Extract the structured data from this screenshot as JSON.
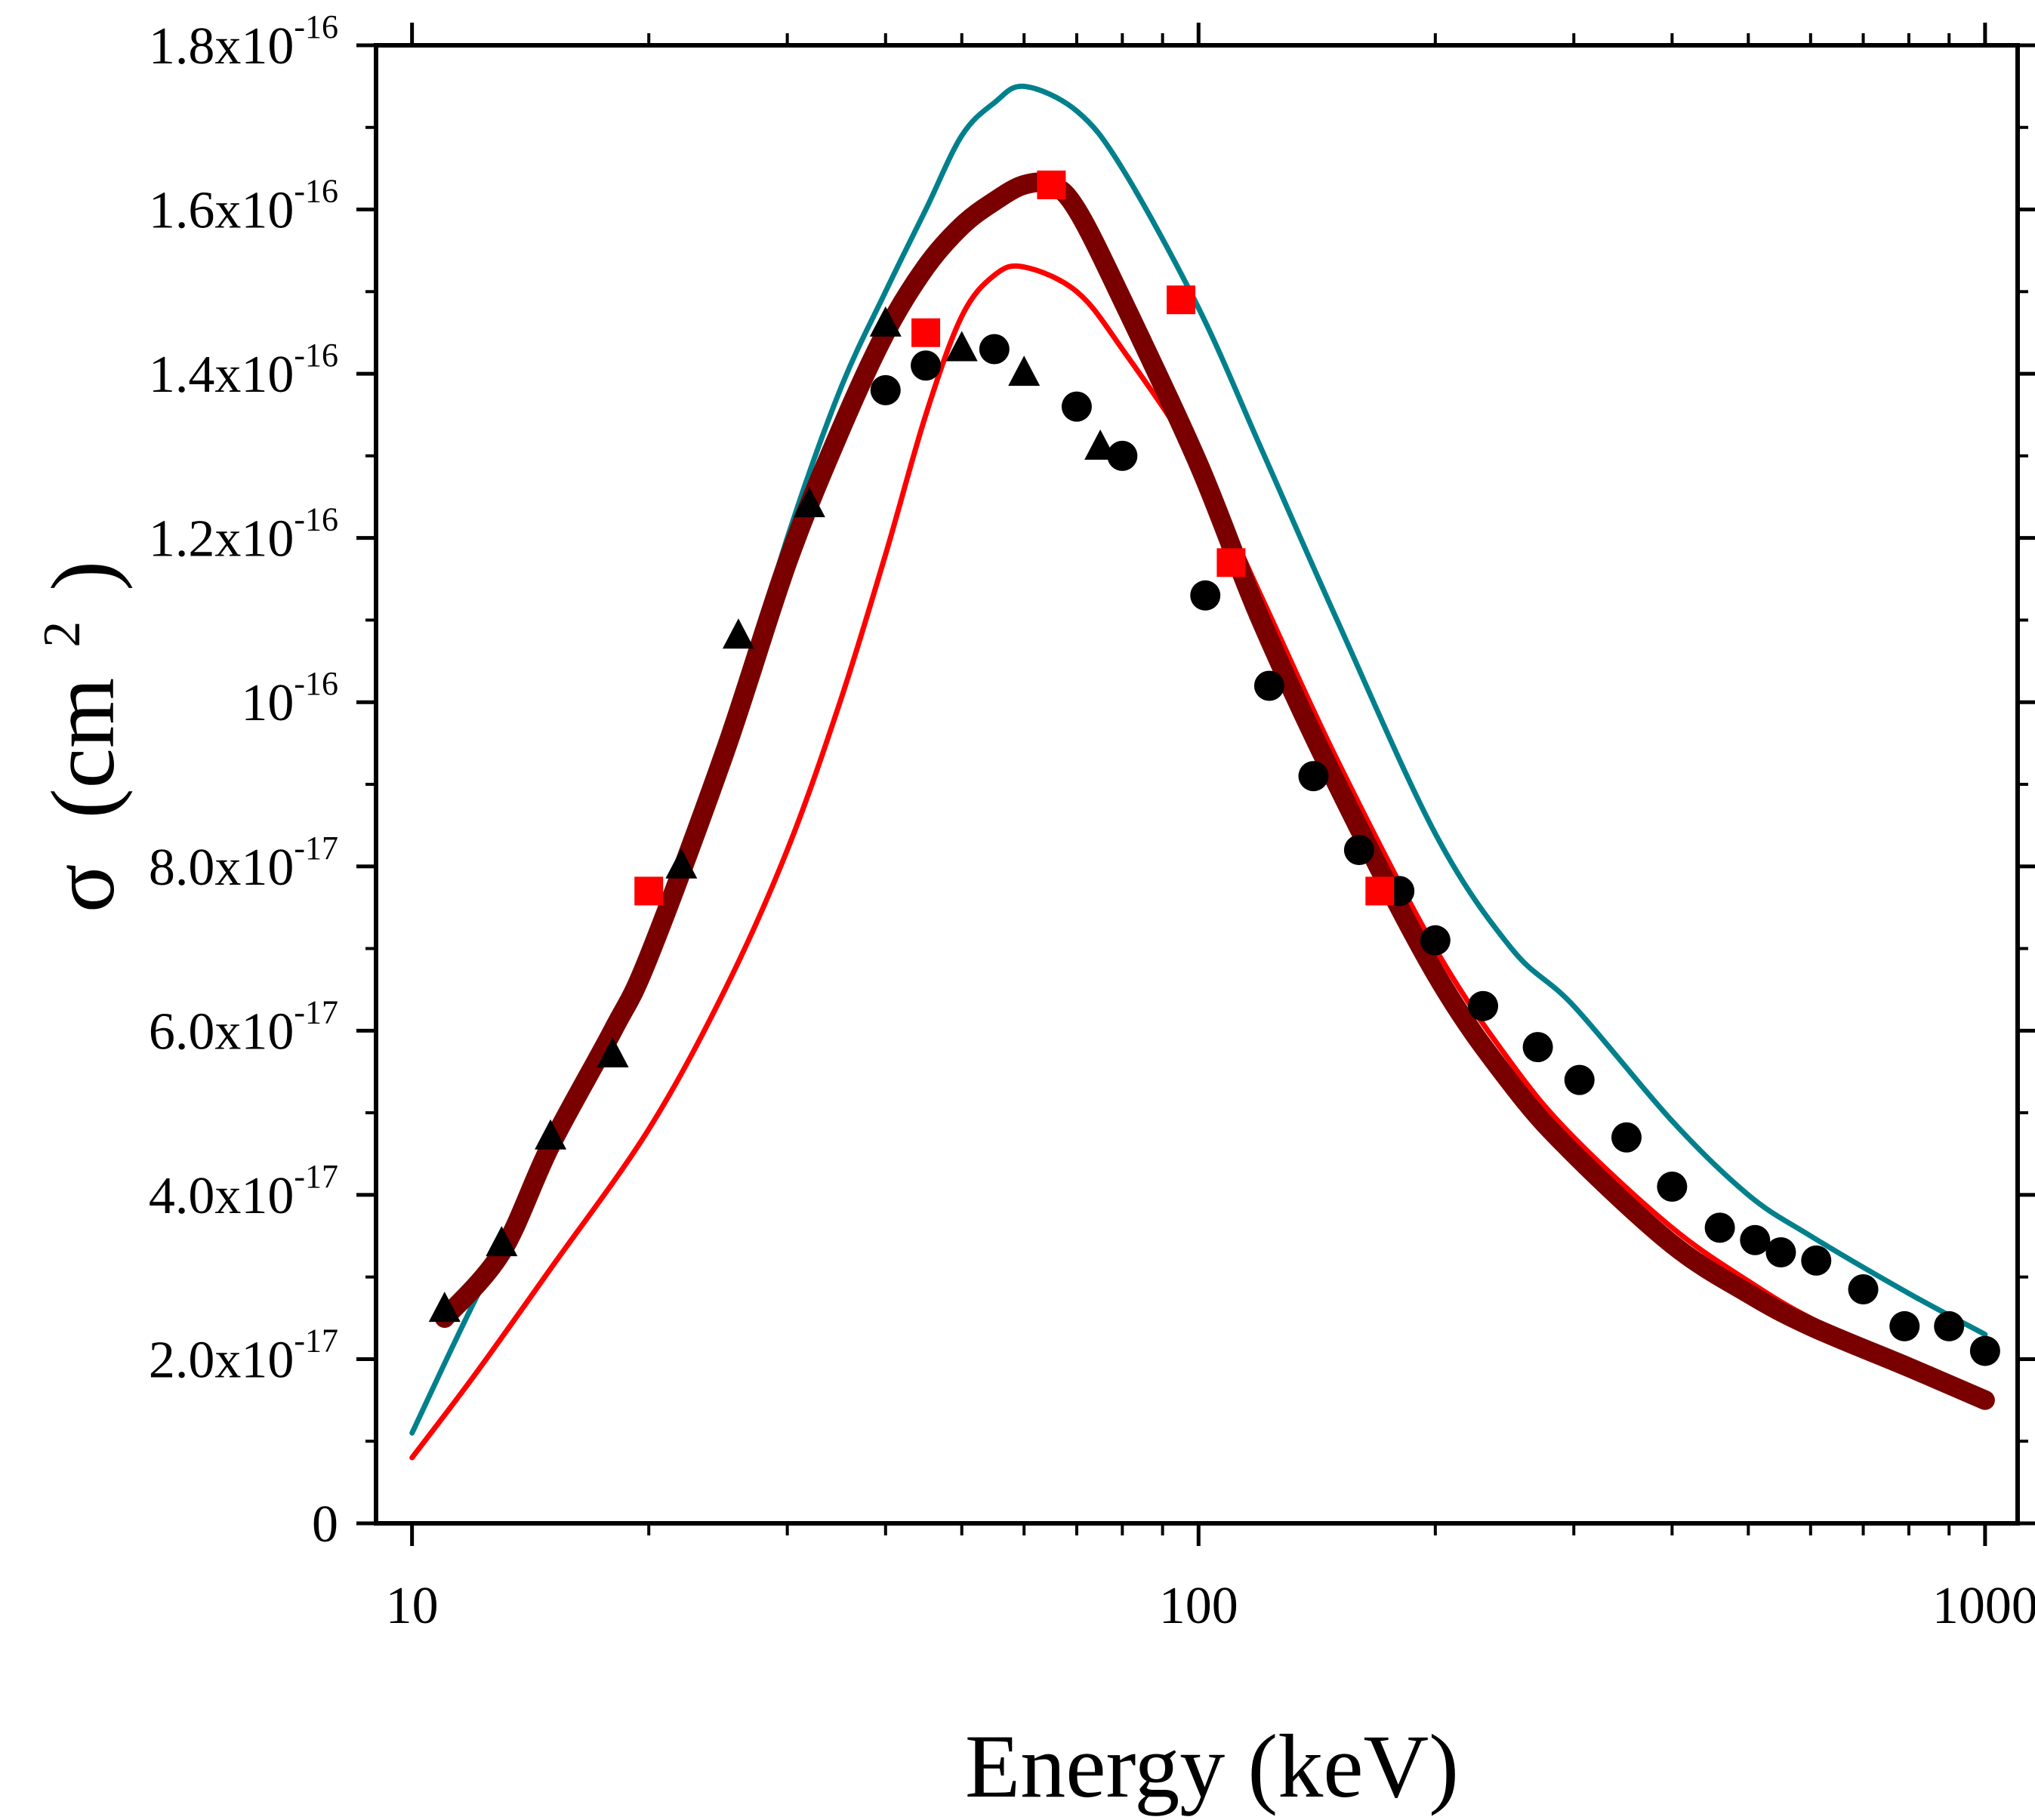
{
  "chart_data": {
    "type": "scatter",
    "title": "",
    "xlabel": "Energy (keV)",
    "ylabel": {
      "symbol": "σ",
      "text": "(cm",
      "sup": "2",
      "close": ")"
    },
    "xscale": "log",
    "xlim": [
      9,
      1100
    ],
    "ylim": [
      0,
      1.8e-16
    ],
    "x_ticks": [
      {
        "value": 10,
        "label": "10"
      },
      {
        "value": 100,
        "label": "100"
      },
      {
        "value": 1000,
        "label": "1000"
      }
    ],
    "y_ticks": [
      {
        "value": 0,
        "mant": "0",
        "exp": ""
      },
      {
        "value": 2e-17,
        "mant": "2.0x10",
        "exp": "-17"
      },
      {
        "value": 4e-17,
        "mant": "4.0x10",
        "exp": "-17"
      },
      {
        "value": 6e-17,
        "mant": "6.0x10",
        "exp": "-17"
      },
      {
        "value": 8e-17,
        "mant": "8.0x10",
        "exp": "-17"
      },
      {
        "value": 1e-16,
        "mant": "10",
        "exp": "-16"
      },
      {
        "value": 1.2e-16,
        "mant": "1.2x10",
        "exp": "-16"
      },
      {
        "value": 1.4e-16,
        "mant": "1.4x10",
        "exp": "-16"
      },
      {
        "value": 1.6e-16,
        "mant": "1.6x10",
        "exp": "-16"
      },
      {
        "value": 1.8e-16,
        "mant": "1.8x10",
        "exp": "-16"
      }
    ],
    "series": [
      {
        "name": "teal-curve",
        "kind": "line",
        "color": "#00808c",
        "width": 7,
        "x": [
          10,
          12,
          15,
          20,
          25,
          30,
          35,
          40,
          45,
          50,
          55,
          60,
          70,
          80,
          100,
          120,
          150,
          200,
          250,
          300,
          400,
          500,
          600,
          800,
          1000
        ],
        "y": [
          1.1e-17,
          2.7e-17,
          4.5e-17,
          7e-17,
          9.5e-17,
          1.2e-16,
          1.38e-16,
          1.5e-16,
          1.6e-16,
          1.69e-16,
          1.73e-16,
          1.75e-16,
          1.72e-16,
          1.65e-16,
          1.48e-16,
          1.31e-16,
          1.1e-16,
          8.4e-17,
          7e-17,
          6.3e-17,
          4.9e-17,
          4e-17,
          3.5e-17,
          2.8e-17,
          2.3e-17
        ]
      },
      {
        "name": "red-curve",
        "kind": "line",
        "color": "#ff0000",
        "width": 7,
        "x": [
          10,
          12,
          15,
          20,
          25,
          30,
          35,
          40,
          45,
          50,
          55,
          60,
          70,
          80,
          100,
          120,
          150,
          200,
          250,
          300,
          400,
          500,
          600,
          800,
          1000
        ],
        "y": [
          8e-18,
          1.8e-17,
          3.1e-17,
          4.8e-17,
          6.5e-17,
          8.2e-17,
          1e-16,
          1.18e-16,
          1.35e-16,
          1.47e-16,
          1.52e-16,
          1.53e-16,
          1.5e-16,
          1.43e-16,
          1.29e-16,
          1.13e-16,
          9.3e-17,
          7e-17,
          5.6e-17,
          4.7e-17,
          3.6e-17,
          2.95e-17,
          2.5e-17,
          1.95e-17,
          1.55e-17
        ]
      },
      {
        "name": "maroon-curve",
        "kind": "line",
        "color": "#7a0000",
        "width": 26,
        "x": [
          11,
          13,
          15,
          18,
          20,
          25,
          30,
          35,
          40,
          45,
          50,
          55,
          60,
          65,
          70,
          80,
          100,
          120,
          150,
          200,
          250,
          300,
          400,
          500,
          600,
          800,
          1000
        ],
        "y": [
          2.5e-17,
          3.3e-17,
          4.6e-17,
          6e-17,
          6.9e-17,
          9.4e-17,
          1.17e-16,
          1.33e-16,
          1.45e-16,
          1.53e-16,
          1.58e-16,
          1.61e-16,
          1.63e-16,
          1.63e-16,
          1.6e-16,
          1.49e-16,
          1.29e-16,
          1.1e-16,
          9e-17,
          6.7e-17,
          5.35e-17,
          4.5e-17,
          3.4e-17,
          2.8e-17,
          2.4e-17,
          1.9e-17,
          1.5e-17
        ]
      },
      {
        "name": "circles",
        "kind": "marker",
        "marker": "circle",
        "color": "#000000",
        "x": [
          40,
          45,
          55,
          70,
          80,
          102,
          123,
          140,
          160,
          180,
          200,
          230,
          270,
          305,
          350,
          400,
          460,
          510,
          550,
          610,
          700,
          790,
          900,
          1000
        ],
        "y": [
          1.38e-16,
          1.41e-16,
          1.43e-16,
          1.36e-16,
          1.3e-16,
          1.13e-16,
          1.02e-16,
          9.1e-17,
          8.2e-17,
          7.7e-17,
          7.1e-17,
          6.3e-17,
          5.8e-17,
          5.4e-17,
          4.7e-17,
          4.1e-17,
          3.6e-17,
          3.45e-17,
          3.3e-17,
          3.2e-17,
          2.85e-17,
          2.4e-17,
          2.4e-17,
          2.1e-17
        ]
      },
      {
        "name": "triangles",
        "kind": "marker",
        "marker": "triangle",
        "color": "#000000",
        "x": [
          11,
          13,
          15,
          18,
          22,
          26,
          32,
          40,
          50,
          60,
          75
        ],
        "y": [
          2.6e-17,
          3.4e-17,
          4.7e-17,
          5.7e-17,
          8e-17,
          1.08e-16,
          1.24e-16,
          1.46e-16,
          1.43e-16,
          1.4e-16,
          1.31e-16
        ]
      },
      {
        "name": "squares",
        "kind": "marker",
        "marker": "square",
        "color": "#ff0000",
        "x": [
          20,
          45,
          65,
          95,
          110,
          170
        ],
        "y": [
          7.7e-17,
          1.45e-16,
          1.63e-16,
          1.49e-16,
          1.17e-16,
          7.7e-17
        ]
      }
    ]
  }
}
